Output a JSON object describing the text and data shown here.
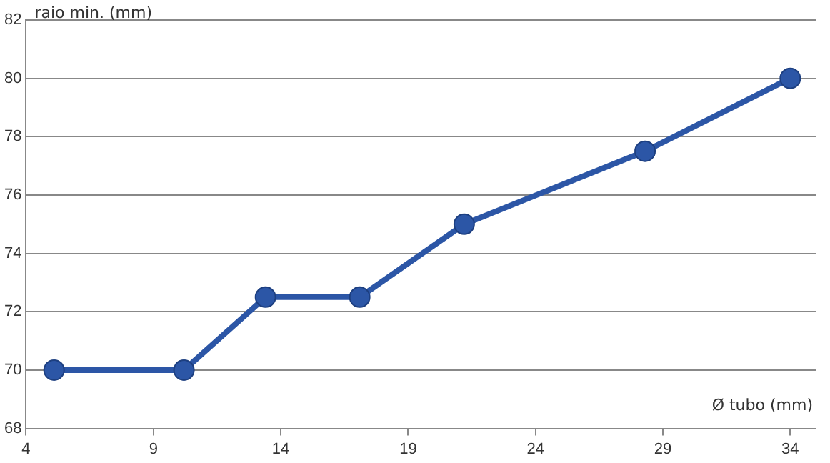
{
  "chart_data": {
    "type": "line",
    "xlabel": "Ø tubo (mm)",
    "ylabel": "raio min. (mm)",
    "x": [
      5.1,
      10.2,
      13.4,
      17.1,
      21.2,
      28.3,
      34
    ],
    "series": [
      {
        "color": "#2c56a6",
        "values": [
          70,
          70,
          72.5,
          72.5,
          75,
          77.5,
          80
        ]
      }
    ],
    "xlim": [
      4,
      35
    ],
    "xticks": [
      4,
      9,
      14,
      19,
      24,
      29,
      34
    ],
    "ylim": [
      68,
      82
    ],
    "yticks": [
      68,
      70,
      72,
      74,
      76,
      78,
      80,
      82
    ],
    "grid": "y",
    "legend": false,
    "marker": "circle",
    "line_style": "solid"
  }
}
